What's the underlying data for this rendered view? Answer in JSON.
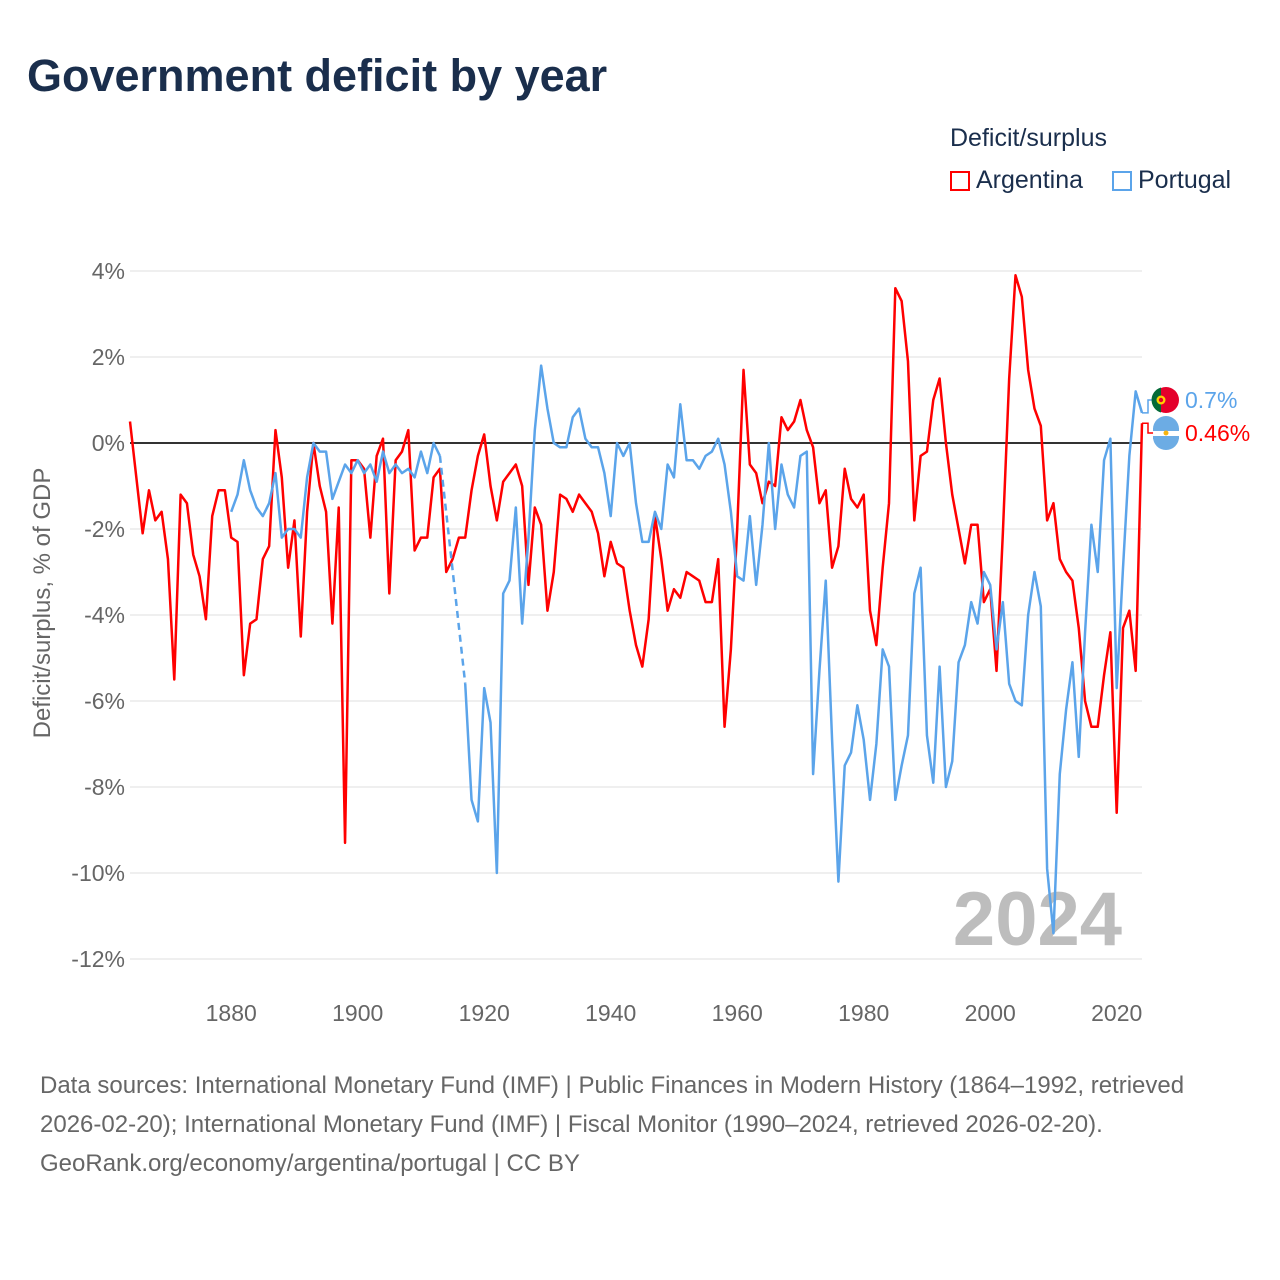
{
  "title": "Government deficit by year",
  "legend": {
    "title": "Deficit/surplus",
    "items": [
      {
        "name": "Argentina",
        "color": "#ff0000"
      },
      {
        "name": "Portugal",
        "color": "#5ba4ea"
      }
    ]
  },
  "footer": {
    "sources": "Data sources: International Monetary Fund (IMF) | Public Finances in Modern History (1864–1992, retrieved 2026-02-20); International Monetary Fund (IMF) | Fiscal Monitor (1990–2024, retrieved 2026-02-20).",
    "credit": "GeoRank.org/economy/argentina/portugal | CC BY"
  },
  "chart_data": {
    "type": "line",
    "title": "Government deficit by year",
    "ylabel": "Deficit/surplus, % of GDP",
    "xlabel": "",
    "xlim": [
      1864,
      2024
    ],
    "ylim": [
      -12,
      4
    ],
    "xticks": [
      1880,
      1900,
      1920,
      1940,
      1960,
      1980,
      2000,
      2020
    ],
    "yticks": [
      4,
      2,
      0,
      -2,
      -4,
      -6,
      -8,
      -10,
      -12
    ],
    "ytick_labels": [
      "4%",
      "2%",
      "0%",
      "-2%",
      "-4%",
      "-6%",
      "-8%",
      "-10%",
      "-12%"
    ],
    "grid": true,
    "legend_position": "top-right",
    "year_label": "2024",
    "series": [
      {
        "name": "Argentina",
        "color": "#ff0000",
        "start": 1864,
        "end_label": "0.46%",
        "values": [
          0.5,
          -0.8,
          -2.1,
          -1.1,
          -1.8,
          -1.6,
          -2.7,
          -5.5,
          -1.2,
          -1.4,
          -2.6,
          -3.1,
          -4.1,
          -1.7,
          -1.1,
          -1.1,
          -2.2,
          -2.3,
          -5.4,
          -4.2,
          -4.1,
          -2.7,
          -2.4,
          0.3,
          -0.8,
          -2.9,
          -1.8,
          -4.5,
          -1.6,
          0.0,
          -1.0,
          -1.6,
          -4.2,
          -1.5,
          -9.3,
          -0.4,
          -0.4,
          -0.6,
          -2.2,
          -0.3,
          0.1,
          -3.5,
          -0.4,
          -0.2,
          0.3,
          -2.5,
          -2.2,
          -2.2,
          -0.8,
          -0.6,
          -3.0,
          -2.7,
          -2.2,
          -2.2,
          -1.1,
          -0.3,
          0.2,
          -1.0,
          -1.8,
          -0.9,
          -0.7,
          -0.5,
          -1.0,
          -3.3,
          -1.5,
          -1.9,
          -3.9,
          -3.0,
          -1.2,
          -1.3,
          -1.6,
          -1.2,
          -1.4,
          -1.6,
          -2.1,
          -3.1,
          -2.3,
          -2.8,
          -2.9,
          -3.9,
          -4.7,
          -5.2,
          -4.1,
          -1.7,
          -2.7,
          -3.9,
          -3.4,
          -3.6,
          -3.0,
          -3.1,
          -3.2,
          -3.7,
          -3.7,
          -2.7,
          -6.6,
          -4.8,
          -2.0,
          1.7,
          -0.5,
          -0.7,
          -1.4,
          -0.9,
          -1.0,
          0.6,
          0.3,
          0.5,
          1.0,
          0.3,
          -0.1,
          -1.4,
          -1.1,
          -2.9,
          -2.4,
          -0.6,
          -1.3,
          -1.5,
          -1.2,
          -3.9,
          -4.7,
          -2.9,
          -1.4,
          3.6,
          3.3,
          1.9,
          -1.8,
          -0.3,
          -0.2,
          1.0,
          1.5,
          0.0,
          -1.2,
          -2.0,
          -2.8,
          -1.9,
          -1.9,
          -3.7,
          -3.4,
          -5.3,
          -2.1,
          1.5,
          3.9,
          3.4,
          1.7,
          0.8,
          0.4,
          -1.8,
          -1.4,
          -2.7,
          -3.0,
          -3.2,
          -4.3,
          -6.0,
          -6.6,
          -6.6,
          -5.4,
          -4.4,
          -8.6,
          -4.3,
          -3.9,
          -5.3,
          0.46
        ]
      },
      {
        "name": "Portugal",
        "color": "#5ba4ea",
        "start": 1880,
        "end_label": "0.7%",
        "values": [
          -1.6,
          -1.2,
          -0.4,
          -1.1,
          -1.5,
          -1.7,
          -1.4,
          -0.7,
          -2.2,
          -2.0,
          -2.0,
          -2.2,
          -0.8,
          0.0,
          -0.2,
          -0.2,
          -1.3,
          -0.9,
          -0.5,
          -0.7,
          -0.4,
          -0.7,
          -0.5,
          -0.9,
          -0.2,
          -0.7,
          -0.5,
          -0.7,
          -0.6,
          -0.8,
          -0.2,
          -0.7,
          0.0,
          -0.3,
          null,
          null,
          null,
          -5.6,
          -8.3,
          -8.8,
          -5.7,
          -6.5,
          -10.0,
          -3.5,
          -3.2,
          -1.5,
          -4.2,
          -2.2,
          0.3,
          1.8,
          0.8,
          0.0,
          -0.1,
          -0.1,
          0.6,
          0.8,
          0.1,
          -0.1,
          -0.1,
          -0.7,
          -1.7,
          0.0,
          -0.3,
          0.0,
          -1.4,
          -2.3,
          -2.3,
          -1.6,
          -2.0,
          -0.5,
          -0.8,
          0.9,
          -0.4,
          -0.4,
          -0.6,
          -0.3,
          -0.2,
          0.1,
          -0.5,
          -1.6,
          -3.1,
          -3.2,
          -1.7,
          -3.3,
          -1.9,
          0.0,
          -2.0,
          -0.5,
          -1.2,
          -1.5,
          -0.3,
          -0.2,
          -7.7,
          -5.3,
          -3.2,
          -6.9,
          -10.2,
          -7.5,
          -7.2,
          -6.1,
          -6.9,
          -8.3,
          -7.0,
          -4.8,
          -5.2,
          -8.3,
          -7.5,
          -6.8,
          -3.5,
          -2.9,
          -6.8,
          -7.9,
          -5.2,
          -8.0,
          -7.4,
          -5.1,
          -4.7,
          -3.7,
          -4.2,
          -3.0,
          -3.3,
          -4.8,
          -3.7,
          -5.6,
          -6.0,
          -6.1,
          -4.0,
          -3.0,
          -3.8,
          -9.9,
          -11.4,
          -7.7,
          -6.2,
          -5.1,
          -7.3,
          -4.4,
          -1.9,
          -3.0,
          -0.4,
          0.1,
          -5.7,
          -2.9,
          -0.3,
          1.2,
          0.7
        ]
      }
    ]
  }
}
